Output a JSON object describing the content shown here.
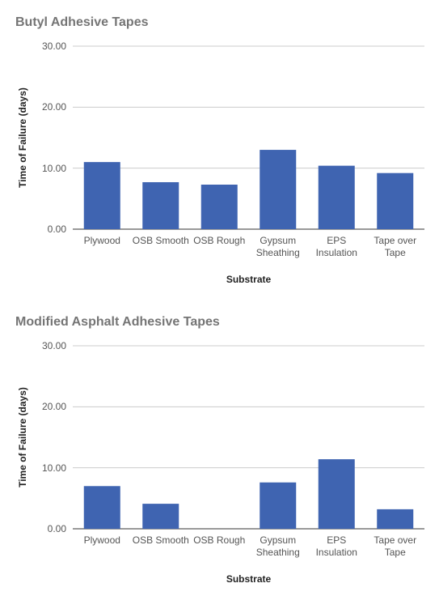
{
  "chart_data": [
    {
      "type": "bar",
      "title": "Butyl Adhesive Tapes",
      "x_label": "Substrate",
      "y_label": "Time of Failure (days)",
      "categories": [
        "Plywood",
        "OSB Smooth",
        "OSB Rough",
        "Gypsum Sheathing",
        "EPS Insulation",
        "Tape over Tape"
      ],
      "values": [
        11.0,
        7.7,
        7.3,
        13.0,
        10.4,
        9.2
      ],
      "color": "#3f64b1",
      "ylim": [
        0,
        30
      ],
      "yticks": [
        {
          "value": 0,
          "label": "0.00"
        },
        {
          "value": 10,
          "label": "10.00"
        },
        {
          "value": 20,
          "label": "20.00"
        },
        {
          "value": 30,
          "label": "30.00"
        }
      ],
      "grid": true
    },
    {
      "type": "bar",
      "title": "Modified Asphalt Adhesive Tapes",
      "x_label": "Substrate",
      "y_label": "Time of Failure (days)",
      "categories": [
        "Plywood",
        "OSB Smooth",
        "OSB Rough",
        "Gypsum Sheathing",
        "EPS Insulation",
        "Tape over Tape"
      ],
      "values": [
        7.0,
        4.1,
        0,
        7.6,
        11.4,
        3.2
      ],
      "color": "#3f64b1",
      "ylim": [
        0,
        30
      ],
      "yticks": [
        {
          "value": 0,
          "label": "0.00"
        },
        {
          "value": 10,
          "label": "10.00"
        },
        {
          "value": 20,
          "label": "20.00"
        },
        {
          "value": 30,
          "label": "30.00"
        }
      ],
      "grid": true
    }
  ]
}
